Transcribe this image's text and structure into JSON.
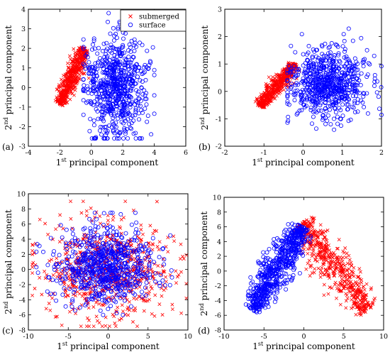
{
  "chart_data": [
    {
      "type": "scatter",
      "panel_label": "(a)",
      "xlabel": "principal component",
      "xlabel_prefix": "1",
      "xlabel_sup": "st",
      "ylabel": "principal component",
      "ylabel_prefix": "2",
      "ylabel_sup": "nd",
      "xlim": [
        -4,
        6
      ],
      "ylim": [
        -3,
        4
      ],
      "xticks": [
        -4,
        -2,
        0,
        2,
        4,
        6
      ],
      "yticks": [
        -3,
        -2,
        -1,
        0,
        1,
        2,
        3,
        4
      ],
      "legend": {
        "position": "top-right",
        "entries": [
          "submerged",
          "surface"
        ]
      },
      "series": [
        {
          "name": "submerged",
          "marker": "x",
          "color": "#ff0000",
          "count": 500,
          "arm_from": [
            -2.0,
            -0.85
          ],
          "arm_to": [
            -0.4,
            2.0
          ],
          "width": 0.22
        },
        {
          "name": "surface",
          "marker": "o",
          "color": "#0000ff",
          "count": 700,
          "center": [
            1.5,
            0.2
          ],
          "spread": [
            1.0,
            1.3
          ],
          "xrange": [
            -0.5,
            4.0
          ],
          "yrange": [
            -2.6,
            3.8
          ]
        }
      ]
    },
    {
      "type": "scatter",
      "panel_label": "(b)",
      "xlabel": "principal component",
      "xlabel_prefix": "1",
      "xlabel_sup": "st",
      "ylabel": "principal component",
      "ylabel_prefix": "2",
      "ylabel_sup": "nd",
      "xlim": [
        -2,
        2
      ],
      "ylim": [
        -2,
        3
      ],
      "xticks": [
        -2,
        -1,
        0,
        1,
        2
      ],
      "yticks": [
        -2,
        -1,
        0,
        1,
        2,
        3
      ],
      "series": [
        {
          "name": "submerged",
          "marker": "x",
          "color": "#ff0000",
          "count": 500,
          "arm_from": [
            -1.1,
            -0.55
          ],
          "arm_to": [
            -0.2,
            1.0
          ],
          "width": 0.1
        },
        {
          "name": "surface",
          "marker": "o",
          "color": "#0000ff",
          "count": 700,
          "center": [
            0.6,
            0.3
          ],
          "spread": [
            0.5,
            0.6
          ],
          "xrange": [
            -0.4,
            2.0
          ],
          "yrange": [
            -1.4,
            2.4
          ]
        }
      ]
    },
    {
      "type": "scatter",
      "panel_label": "(c)",
      "xlabel": "principal component",
      "xlabel_prefix": "1",
      "xlabel_sup": "st",
      "ylabel": "principal component",
      "ylabel_prefix": "2",
      "ylabel_sup": "nd",
      "xlim": [
        -10,
        10
      ],
      "ylim": [
        -8,
        10
      ],
      "xticks": [
        -10,
        -5,
        0,
        5,
        10
      ],
      "yticks": [
        -8,
        -6,
        -4,
        -2,
        0,
        2,
        4,
        6,
        8,
        10
      ],
      "series": [
        {
          "name": "submerged",
          "marker": "x",
          "color": "#ff0000",
          "count": 700,
          "center": [
            0,
            0
          ],
          "spread": [
            4.0,
            3.2
          ],
          "xrange": [
            -9.5,
            9.8
          ],
          "yrange": [
            -7.5,
            9.0
          ]
        },
        {
          "name": "surface",
          "marker": "o",
          "color": "#0000ff",
          "count": 700,
          "center": [
            -0.5,
            0.5
          ],
          "spread": [
            3.2,
            2.6
          ],
          "xrange": [
            -9.0,
            8.0
          ],
          "yrange": [
            -6.0,
            7.5
          ]
        }
      ]
    },
    {
      "type": "scatter",
      "panel_label": "(d)",
      "xlabel": "principal component",
      "xlabel_prefix": "1",
      "xlabel_sup": "st",
      "ylabel": "principal component",
      "ylabel_prefix": "2",
      "ylabel_sup": "nd",
      "xlim": [
        -10,
        10
      ],
      "ylim": [
        -8,
        10
      ],
      "xticks": [
        -10,
        -5,
        0,
        5,
        10
      ],
      "yticks": [
        -8,
        -6,
        -4,
        -2,
        0,
        2,
        4,
        6,
        8,
        10
      ],
      "series": [
        {
          "name": "submerged",
          "marker": "x",
          "color": "#ff0000",
          "count": 550,
          "arm_from": [
            -0.3,
            6.5
          ],
          "arm_to": [
            8.0,
            -5.5
          ],
          "width": 1.0
        },
        {
          "name": "surface",
          "marker": "o",
          "color": "#0000ff",
          "count": 650,
          "arm_from": [
            -6.5,
            -5.3
          ],
          "arm_to": [
            -0.2,
            6.0
          ],
          "width": 0.9
        }
      ]
    }
  ]
}
